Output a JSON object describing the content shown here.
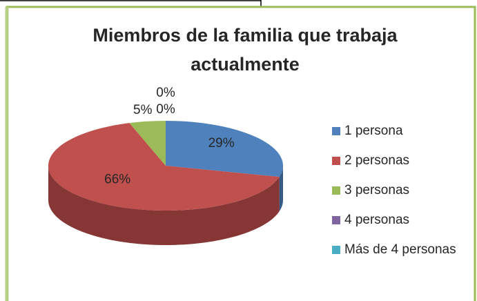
{
  "chart_data": {
    "type": "pie",
    "title": "Miembros de la familia que trabaja actualmente",
    "categories": [
      "1 persona",
      "2 personas",
      "3 personas",
      "4 personas",
      "Más de 4 personas"
    ],
    "values": [
      29,
      66,
      5,
      0,
      0
    ],
    "value_labels": [
      "29%",
      "66%",
      "5%",
      "0%",
      "0%"
    ],
    "colors": [
      "#4f81bd",
      "#c0504d",
      "#9bbb59",
      "#8064a2",
      "#4bacc6"
    ],
    "legend": "right"
  }
}
